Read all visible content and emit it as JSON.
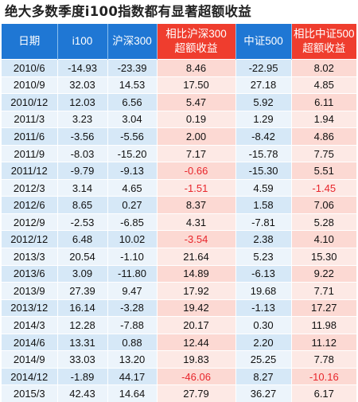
{
  "title": "绝大多数季度i100指数都有显著超额收益",
  "colors": {
    "header_blue": "#1f77d4",
    "header_red": "#ef3d2e",
    "row_blue": "#d6e8f7",
    "row_pink": "#fcd9d3",
    "negative_text": "#e8262c"
  },
  "chart_data": {
    "type": "table",
    "title": "绝大多数季度i100指数都有显著超额收益",
    "columns": [
      "日期",
      "i100",
      "沪深300",
      "相比沪深300超额收益",
      "中证500",
      "相比中证500超额收益"
    ],
    "header_lines": [
      [
        "日期"
      ],
      [
        "i100"
      ],
      [
        "沪深300"
      ],
      [
        "相比沪深300",
        "超额收益"
      ],
      [
        "中证500"
      ],
      [
        "相比中证500",
        "超额收益"
      ]
    ],
    "rows": [
      [
        "2010/6",
        "-14.93",
        "-23.39",
        "8.46",
        "-22.95",
        "8.02"
      ],
      [
        "2010/9",
        "32.03",
        "14.53",
        "17.50",
        "27.18",
        "4.85"
      ],
      [
        "2010/12",
        "12.03",
        "6.56",
        "5.47",
        "5.92",
        "6.11"
      ],
      [
        "2011/3",
        "3.23",
        "3.04",
        "0.19",
        "1.29",
        "1.94"
      ],
      [
        "2011/6",
        "-3.56",
        "-5.56",
        "2.00",
        "-8.42",
        "4.86"
      ],
      [
        "2011/9",
        "-8.03",
        "-15.20",
        "7.17",
        "-15.78",
        "7.75"
      ],
      [
        "2011/12",
        "-9.79",
        "-9.13",
        "-0.66",
        "-15.30",
        "5.51"
      ],
      [
        "2012/3",
        "3.14",
        "4.65",
        "-1.51",
        "4.59",
        "-1.45"
      ],
      [
        "2012/6",
        "8.65",
        "0.27",
        "8.37",
        "1.58",
        "7.06"
      ],
      [
        "2012/9",
        "-2.53",
        "-6.85",
        "4.31",
        "-7.81",
        "5.28"
      ],
      [
        "2012/12",
        "6.48",
        "10.02",
        "-3.54",
        "2.38",
        "4.10"
      ],
      [
        "2013/3",
        "20.54",
        "-1.10",
        "21.64",
        "5.23",
        "15.30"
      ],
      [
        "2013/6",
        "3.09",
        "-11.80",
        "14.89",
        "-6.13",
        "9.22"
      ],
      [
        "2013/9",
        "27.39",
        "9.47",
        "17.92",
        "19.68",
        "7.71"
      ],
      [
        "2013/12",
        "16.14",
        "-3.28",
        "19.42",
        "-1.13",
        "17.27"
      ],
      [
        "2014/3",
        "12.28",
        "-7.88",
        "20.17",
        "0.30",
        "11.98"
      ],
      [
        "2014/6",
        "13.31",
        "0.88",
        "12.44",
        "2.20",
        "11.12"
      ],
      [
        "2014/9",
        "33.03",
        "13.20",
        "19.83",
        "25.25",
        "7.78"
      ],
      [
        "2014/12",
        "-1.89",
        "44.17",
        "-46.06",
        "8.27",
        "-10.16"
      ],
      [
        "2015/3",
        "42.43",
        "14.64",
        "27.79",
        "36.27",
        "6.17"
      ]
    ]
  }
}
